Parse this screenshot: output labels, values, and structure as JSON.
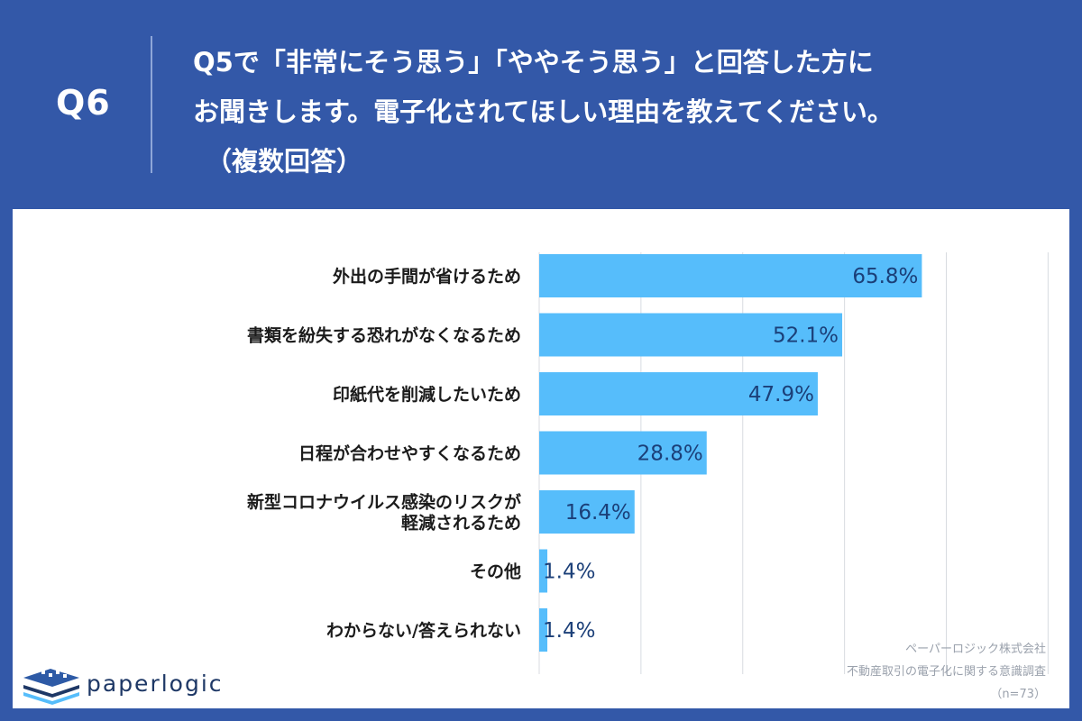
{
  "header": {
    "qnum": "Q6",
    "question_lines": [
      "Q5で「非常にそう思う」「ややそう思う」と回答した方に",
      "お聞きします。電子化されてほしい理由を教えてください。",
      "（複数回答）"
    ]
  },
  "chart_data": {
    "type": "bar",
    "orientation": "horizontal",
    "categories": [
      [
        "外出の手間が省けるため"
      ],
      [
        "書類を紛失する恐れがなくなるため"
      ],
      [
        "印紙代を削減したいため"
      ],
      [
        "日程が合わせやすくなるため"
      ],
      [
        "新型コロナウイルス感染のリスクが",
        "軽減されるため"
      ],
      [
        "その他"
      ],
      [
        "わからない/答えられない"
      ]
    ],
    "values": [
      65.8,
      52.1,
      47.9,
      28.8,
      16.4,
      1.4,
      1.4
    ],
    "value_labels": [
      "65.8%",
      "52.1%",
      "47.9%",
      "28.8%",
      "16.4%",
      "1.4%",
      "1.4%"
    ],
    "xlim": [
      0,
      100
    ],
    "gridlines": [
      0,
      17.5,
      35,
      52.5,
      70,
      87.5
    ],
    "bar_color": "#56bdfb",
    "grid_color": "#d8dbe0"
  },
  "brand": {
    "logo_text": "paperlogic"
  },
  "footer": {
    "company": "ペーパーロジック株式会社",
    "survey": "不動産取引の電子化に関する意識調査",
    "n": "（n=73）"
  },
  "colors": {
    "background": "#3358a8",
    "panel": "#ffffff",
    "logo": "#1e3866"
  }
}
